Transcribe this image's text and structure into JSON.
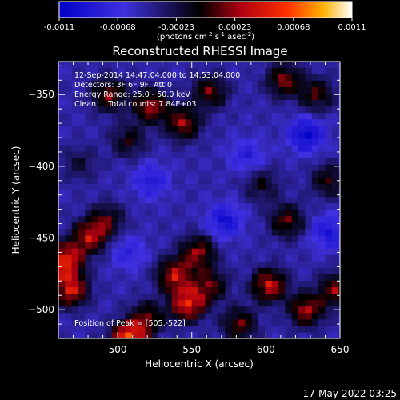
{
  "chart_data": {
    "type": "heatmap",
    "title": "Reconstructed RHESSI Image",
    "xlabel": "Heliocentric X (arcsec)",
    "ylabel": "Heliocentric Y (arcsec)",
    "xlim": [
      460,
      650
    ],
    "ylim": [
      -520,
      -327
    ],
    "x_ticks": [
      500,
      550,
      600,
      650
    ],
    "y_ticks": [
      -350,
      -400,
      -450,
      -500
    ],
    "colorbar": {
      "min": -0.0011,
      "max": 0.0011,
      "tick_labels": [
        "-0.0011",
        "-0.00068",
        "-0.00023",
        "0.00023",
        "0.00068",
        "0.0011"
      ],
      "unit_text": "(photons cm",
      "unit_sup1": "-2",
      "unit_mid": " s",
      "unit_sup2": "-1",
      "unit_mid2": " asec",
      "unit_sup3": "-2",
      "unit_end": ")"
    },
    "annotations": [
      "12-Sep-2014 14:47:04.000 to 14:53:04.000",
      "Detectors: 3F 6F 9F, Att 0",
      "Energy Range: 25.0 - 50.0 keV",
      "Clean     Total counts: 7.84E+03"
    ],
    "peak_label": "Position of Peak = [505,-522]",
    "blobs": [
      {
        "x": 462,
        "y": -468,
        "v": 0.001
      },
      {
        "x": 466,
        "y": -488,
        "v": 0.0009
      },
      {
        "x": 478,
        "y": -452,
        "v": 0.00075
      },
      {
        "x": 490,
        "y": -440,
        "v": 0.00055
      },
      {
        "x": 505,
        "y": -522,
        "v": 0.0011
      },
      {
        "x": 518,
        "y": -508,
        "v": 0.0006
      },
      {
        "x": 536,
        "y": -478,
        "v": 0.0008
      },
      {
        "x": 545,
        "y": -498,
        "v": 0.00095
      },
      {
        "x": 552,
        "y": -462,
        "v": 0.0007
      },
      {
        "x": 560,
        "y": -485,
        "v": 0.0006
      },
      {
        "x": 492,
        "y": -352,
        "v": 0.00065
      },
      {
        "x": 520,
        "y": -360,
        "v": 0.00075
      },
      {
        "x": 542,
        "y": -372,
        "v": 0.0007
      },
      {
        "x": 560,
        "y": -350,
        "v": 0.0006
      },
      {
        "x": 505,
        "y": -384,
        "v": 0.00045
      },
      {
        "x": 610,
        "y": -342,
        "v": 0.00065
      },
      {
        "x": 632,
        "y": -352,
        "v": 0.00055
      },
      {
        "x": 612,
        "y": -440,
        "v": 0.0006
      },
      {
        "x": 640,
        "y": -412,
        "v": 0.0005
      },
      {
        "x": 595,
        "y": -415,
        "v": 0.0004
      },
      {
        "x": 600,
        "y": -485,
        "v": 0.00085
      },
      {
        "x": 625,
        "y": -502,
        "v": 0.00075
      },
      {
        "x": 645,
        "y": -488,
        "v": 0.00065
      },
      {
        "x": 580,
        "y": -512,
        "v": 0.0006
      },
      {
        "x": 472,
        "y": -400,
        "v": 0.0003
      },
      {
        "x": 520,
        "y": -412,
        "v": -0.0004
      },
      {
        "x": 570,
        "y": -440,
        "v": -0.0005
      },
      {
        "x": 625,
        "y": -380,
        "v": -0.0006
      },
      {
        "x": 640,
        "y": -448,
        "v": -0.00045
      },
      {
        "x": 505,
        "y": -462,
        "v": -0.0003
      },
      {
        "x": 585,
        "y": -395,
        "v": -0.00035
      }
    ],
    "grid": false
  },
  "footer": {
    "timestamp": "17-May-2022 03:25"
  }
}
